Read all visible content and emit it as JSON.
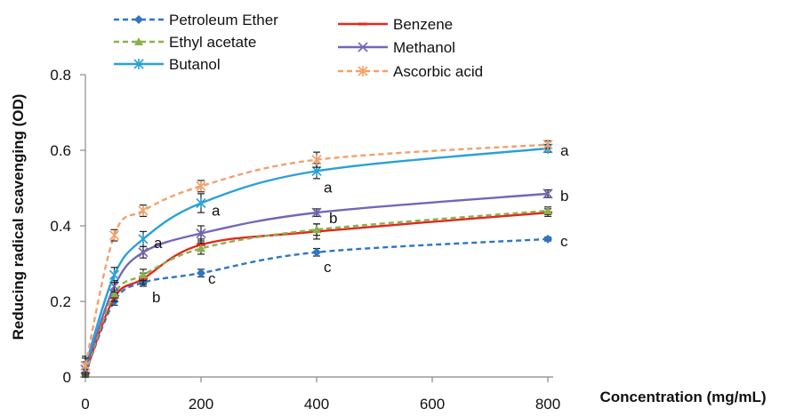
{
  "chart_data": {
    "type": "line",
    "xlabel": "Concentration (mg/mL)",
    "ylabel": "Reducing radical scavenging (OD)",
    "xlim": [
      0,
      800
    ],
    "ylim": [
      0,
      0.8
    ],
    "x_ticks": [
      "0",
      "200",
      "400",
      "600",
      "800"
    ],
    "y_ticks": [
      "0",
      "0.2",
      "0.4",
      "0.6",
      "0.8"
    ],
    "x": [
      0,
      50,
      100,
      200,
      400,
      800
    ],
    "legend_position": "top-left",
    "series": [
      {
        "name": "Petroleum Ether",
        "color": "#2e75c9",
        "dash": "dashed",
        "marker": "diamond",
        "values": [
          0.01,
          0.2,
          0.25,
          0.275,
          0.33,
          0.365
        ],
        "error": [
          0.01,
          0.01,
          0.01,
          0.01,
          0.01,
          0.005
        ],
        "letters": [
          "",
          "",
          "b",
          "c",
          "c",
          "c"
        ]
      },
      {
        "name": "Benzene",
        "color": "#e02a1c",
        "dash": "solid",
        "marker": "bar",
        "values": [
          0.01,
          0.21,
          0.26,
          0.35,
          0.385,
          0.435
        ],
        "error": [
          0.01,
          0.01,
          0.015,
          0.015,
          0.02,
          0.01
        ],
        "letters": [
          "",
          "",
          "",
          "",
          "",
          ""
        ]
      },
      {
        "name": "Ethyl acetate",
        "color": "#8bb04c",
        "dash": "dashed",
        "marker": "triangle",
        "values": [
          0.01,
          0.22,
          0.27,
          0.34,
          0.39,
          0.44
        ],
        "error": [
          0.01,
          0.01,
          0.015,
          0.015,
          0.015,
          0.01
        ],
        "letters": [
          "",
          "",
          "",
          "",
          "",
          ""
        ]
      },
      {
        "name": "Methanol",
        "color": "#7466b8",
        "dash": "solid",
        "marker": "star",
        "values": [
          0.02,
          0.24,
          0.33,
          0.38,
          0.435,
          0.485
        ],
        "error": [
          0.02,
          0.015,
          0.015,
          0.02,
          0.01,
          0.01
        ],
        "letters": [
          "",
          "",
          "",
          "",
          "b",
          "b"
        ]
      },
      {
        "name": "Butanol",
        "color": "#2aa1d8",
        "dash": "solid",
        "marker": "asterisk",
        "values": [
          0.03,
          0.27,
          0.365,
          0.46,
          0.545,
          0.605
        ],
        "error": [
          0.025,
          0.02,
          0.02,
          0.025,
          0.02,
          0.01
        ],
        "letters": [
          "",
          "",
          "a",
          "a",
          "a",
          "a"
        ]
      },
      {
        "name": "Ascorbic acid",
        "color": "#f2a06a",
        "dash": "dashed",
        "marker": "asterisk",
        "values": [
          0.03,
          0.375,
          0.44,
          0.505,
          0.575,
          0.615
        ],
        "error": [
          0.02,
          0.015,
          0.015,
          0.015,
          0.02,
          0.01
        ],
        "letters": [
          "",
          "",
          "",
          "",
          "",
          ""
        ]
      }
    ]
  }
}
